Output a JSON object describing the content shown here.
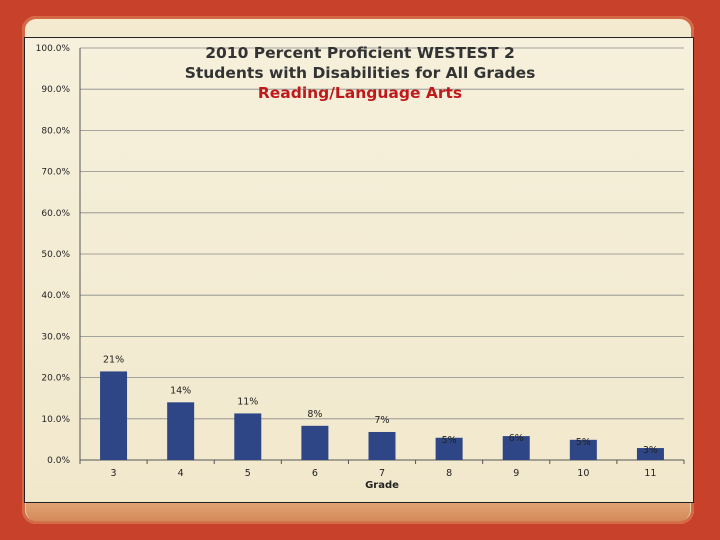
{
  "chart_data": {
    "type": "bar",
    "title": "2010 Percent Proficient WESTEST 2",
    "subtitle": "Students with Disabilities for All Grades",
    "subtitle2": "Reading/Language Arts",
    "xlabel": "Grade",
    "ylabel": "",
    "ylim": [
      0,
      100
    ],
    "y_ticks": [
      "0.0%",
      "10.0%",
      "20.0%",
      "30.0%",
      "40.0%",
      "50.0%",
      "60.0%",
      "70.0%",
      "80.0%",
      "90.0%",
      "100.0%"
    ],
    "categories": [
      "3",
      "4",
      "5",
      "6",
      "7",
      "8",
      "9",
      "10",
      "11"
    ],
    "values": [
      21.5,
      14.0,
      11.3,
      8.3,
      6.8,
      5.4,
      5.8,
      4.9,
      2.9
    ],
    "data_labels": [
      "21%",
      "14%",
      "11%",
      "8%",
      "7%",
      "5%",
      "6%",
      "5%",
      "3%"
    ],
    "grid": true,
    "legend": "none",
    "bar_color": "#2e4686",
    "subtitle_color": "#c0191b"
  }
}
